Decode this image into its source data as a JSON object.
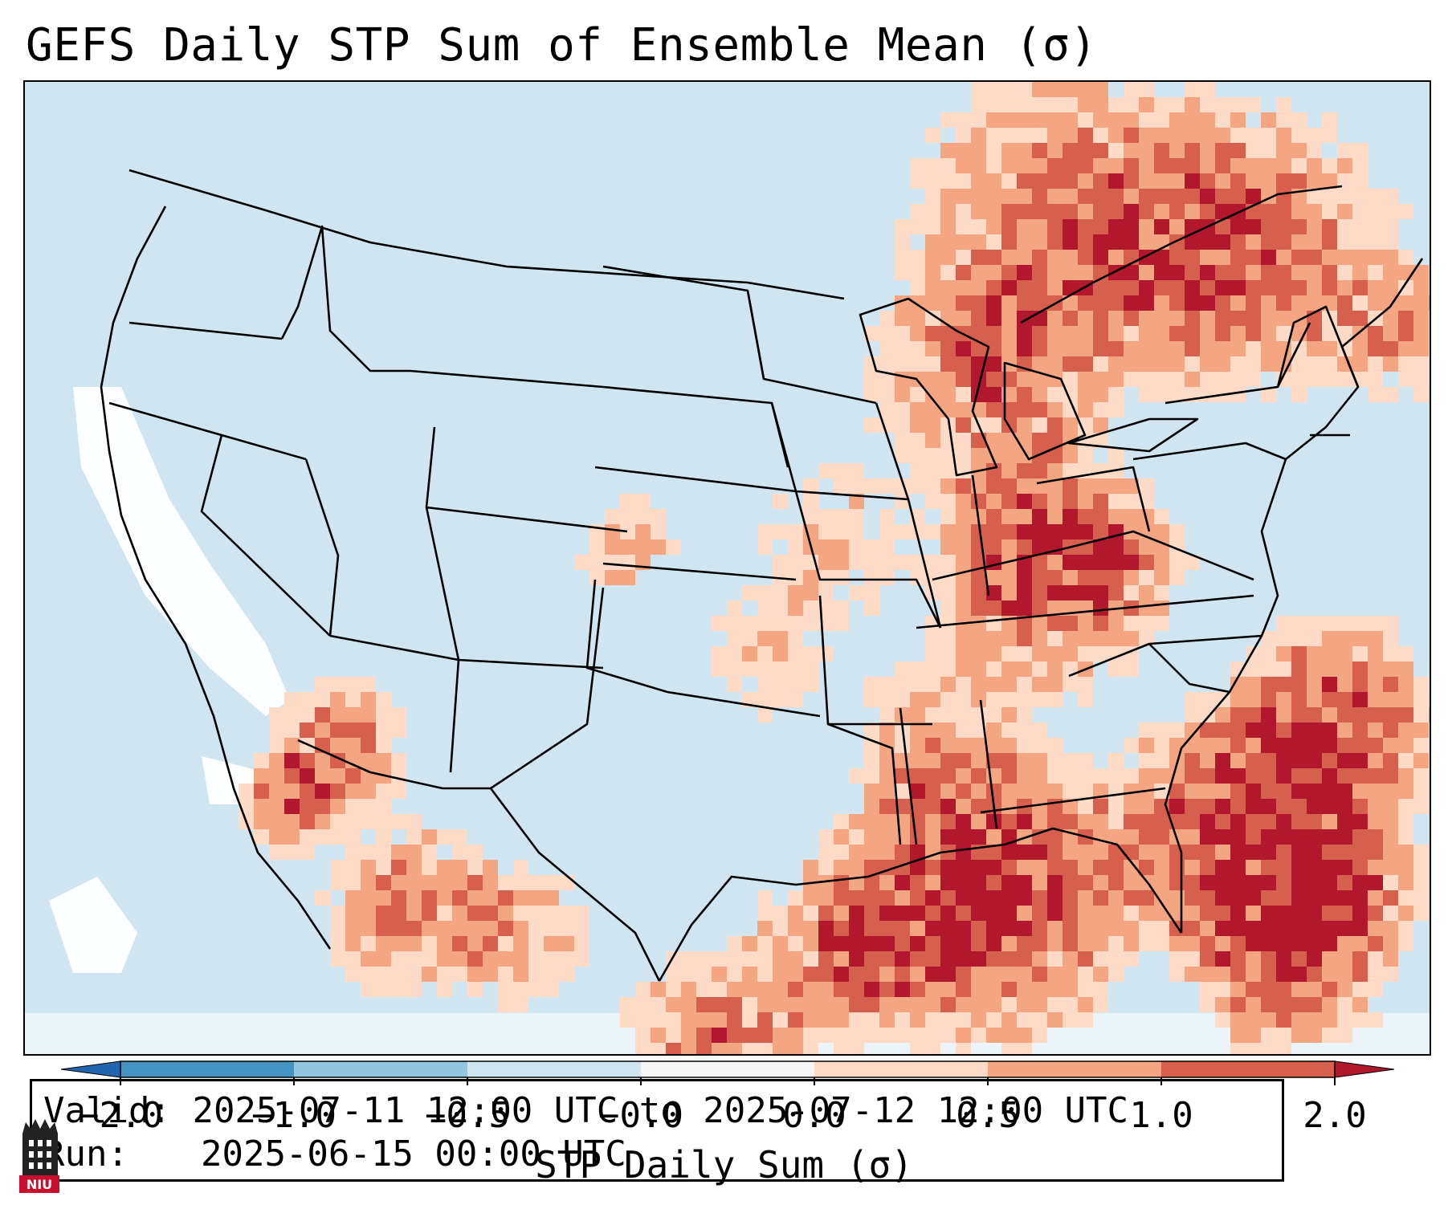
{
  "title": "GEFS Daily STP Sum of Ensemble Mean (σ)",
  "info": {
    "valid_label": "Valid:",
    "valid_value": "2025-07-11 12:00 UTC to 2025-07-12 12:00 UTC",
    "run_label": "Run:",
    "run_value": "2025-06-15 00:00 UTC"
  },
  "colorbar": {
    "label": "STP Daily Sum (σ)",
    "ticks": [
      "−2.0",
      "−1.0",
      "−0.5",
      "−0.0",
      "0.0",
      "0.5",
      "1.0",
      "2.0"
    ],
    "bin_colors": [
      "#4393c3",
      "#92c5de",
      "#d1e5f0",
      "#f7f7f7",
      "#fddbc7",
      "#f4a582",
      "#d6604d"
    ],
    "under_color": "#2166ac",
    "over_color": "#b2182b"
  },
  "map": {
    "land_fill": "#d1e5f0",
    "ocean_fill": "#d1e5f0"
  },
  "logo": {
    "text": "NIU"
  }
}
